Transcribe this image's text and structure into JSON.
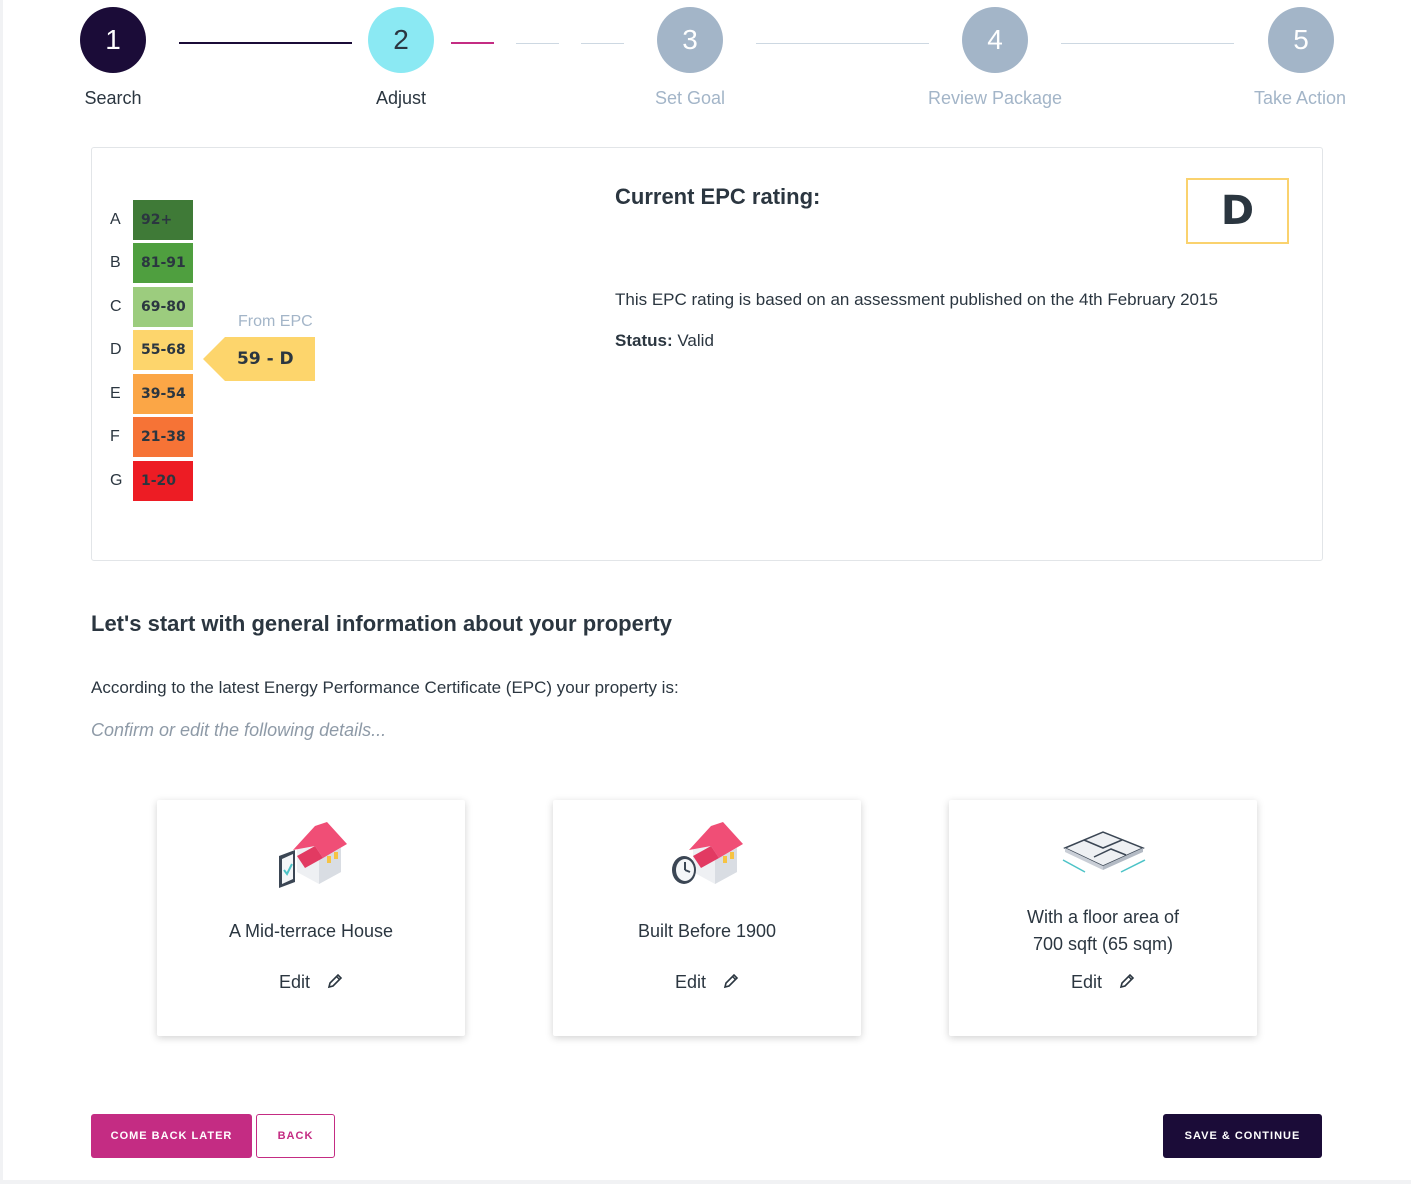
{
  "stepper": {
    "steps": [
      {
        "number": "1",
        "label": "Search",
        "state": "complete"
      },
      {
        "number": "2",
        "label": "Adjust",
        "state": "current"
      },
      {
        "number": "3",
        "label": "Set Goal",
        "state": "upcoming"
      },
      {
        "number": "4",
        "label": "Review Package",
        "state": "upcoming"
      },
      {
        "number": "5",
        "label": "Take Action",
        "state": "upcoming"
      }
    ],
    "colors": {
      "complete": "#1b0c38",
      "current": "#8be9f3",
      "upcoming": "#a3b5c8",
      "progress_accent": "#c42c83"
    }
  },
  "epc": {
    "bands": [
      {
        "letter": "A",
        "range": "92+",
        "color": "#3f7a37"
      },
      {
        "letter": "B",
        "range": "81-91",
        "color": "#4f9f3f"
      },
      {
        "letter": "C",
        "range": "69-80",
        "color": "#9ccc7e"
      },
      {
        "letter": "D",
        "range": "55-68",
        "color": "#fdd56c"
      },
      {
        "letter": "E",
        "range": "39-54",
        "color": "#fba646"
      },
      {
        "letter": "F",
        "range": "21-38",
        "color": "#f67336"
      },
      {
        "letter": "G",
        "range": "1-20",
        "color": "#ed1c24"
      }
    ],
    "from_label": "From EPC",
    "current_marker": "59 - D",
    "title": "Current EPC rating:",
    "rating": "D",
    "assessment_text": "This EPC rating is based on an assessment published on the 4th February 2015",
    "status_label": "Status:",
    "status_value": "Valid"
  },
  "general": {
    "title": "Let's start with general information about your property",
    "intro": "According to the latest Energy Performance Certificate (EPC) your property is:",
    "hint": "Confirm or edit the following details..."
  },
  "property_cards": [
    {
      "icon": "house-checklist-icon",
      "lines": [
        "A Mid-terrace House"
      ],
      "edit_label": "Edit"
    },
    {
      "icon": "house-clock-icon",
      "lines": [
        "Built Before 1900"
      ],
      "edit_label": "Edit"
    },
    {
      "icon": "floor-plan-icon",
      "lines": [
        "With a floor area of",
        "700 sqft (65 sqm)"
      ],
      "edit_label": "Edit"
    }
  ],
  "actions": {
    "come_back_later": "COME BACK LATER",
    "back": "BACK",
    "save_continue": "SAVE & CONTINUE"
  }
}
